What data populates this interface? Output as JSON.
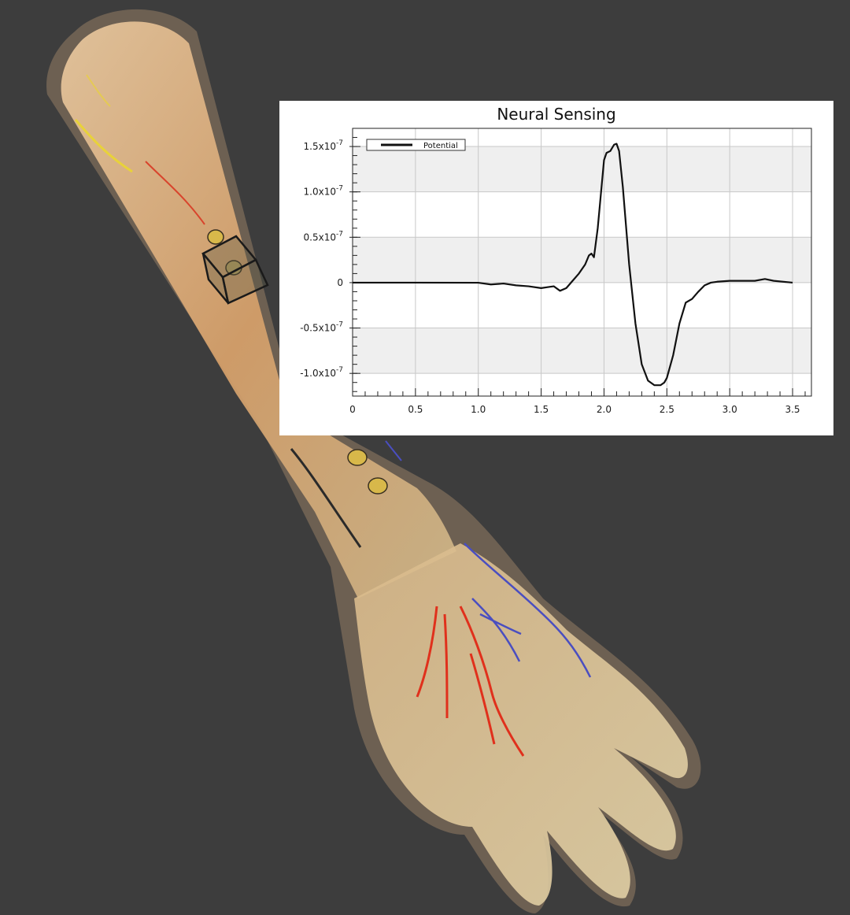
{
  "scene": {
    "background_color": "#3d3d3d",
    "skin_color": "#d9a873",
    "nerve_red": "#e0301c",
    "nerve_blue": "#4a4ec0",
    "nerve_yellow": "#e8d23a",
    "electrode_color": "#d8b84a"
  },
  "chart_data": {
    "type": "line",
    "title": "Neural Sensing",
    "xlabel": "",
    "ylabel": "",
    "xlim": [
      0,
      3.65
    ],
    "ylim": [
      -1.25e-07,
      1.7e-07
    ],
    "x_ticks": [
      {
        "value": 0,
        "label": "0"
      },
      {
        "value": 0.5,
        "label": "0.5"
      },
      {
        "value": 1.0,
        "label": "1.0"
      },
      {
        "value": 1.5,
        "label": "1.5"
      },
      {
        "value": 2.0,
        "label": "2.0"
      },
      {
        "value": 2.5,
        "label": "2.5"
      },
      {
        "value": 3.0,
        "label": "3.0"
      },
      {
        "value": 3.5,
        "label": "3.5"
      }
    ],
    "y_ticks": [
      {
        "value": 1.5e-07,
        "base": "1.5x10",
        "exp": "-7"
      },
      {
        "value": 1e-07,
        "base": "1.0x10",
        "exp": "-7"
      },
      {
        "value": 5e-08,
        "base": "0.5x10",
        "exp": "-7"
      },
      {
        "value": 0,
        "base": "0",
        "exp": ""
      },
      {
        "value": -5e-08,
        "base": "-0.5x10",
        "exp": "-7"
      },
      {
        "value": -1e-07,
        "base": "-1.0x10",
        "exp": "-7"
      }
    ],
    "grid": true,
    "banded_background": true,
    "legend_position": "top-left",
    "series": [
      {
        "name": "Potential",
        "color": "#111111",
        "x": [
          0,
          0.5,
          1.0,
          1.1,
          1.2,
          1.3,
          1.4,
          1.5,
          1.55,
          1.6,
          1.65,
          1.7,
          1.75,
          1.8,
          1.85,
          1.88,
          1.9,
          1.92,
          1.95,
          1.98,
          2.0,
          2.02,
          2.05,
          2.08,
          2.1,
          2.12,
          2.15,
          2.2,
          2.25,
          2.3,
          2.35,
          2.4,
          2.45,
          2.48,
          2.5,
          2.55,
          2.6,
          2.65,
          2.7,
          2.75,
          2.8,
          2.85,
          2.9,
          3.0,
          3.1,
          3.2,
          3.28,
          3.35,
          3.5
        ],
        "values": [
          0,
          0,
          -1e-10,
          -2e-09,
          -1e-09,
          -3e-09,
          -4e-09,
          -6e-09,
          -5e-09,
          -4e-09,
          -9e-09,
          -6e-09,
          2e-09,
          1e-08,
          2e-08,
          3e-08,
          3.2e-08,
          2.8e-08,
          6e-08,
          1.05e-07,
          1.35e-07,
          1.43e-07,
          1.45e-07,
          1.52e-07,
          1.53e-07,
          1.45e-07,
          1.05e-07,
          2e-08,
          -4.5e-08,
          -9e-08,
          -1.08e-07,
          -1.13e-07,
          -1.13e-07,
          -1.1e-07,
          -1.05e-07,
          -8e-08,
          -4.5e-08,
          -2.2e-08,
          -1.8e-08,
          -1e-08,
          -3e-09,
          0,
          1e-09,
          2e-09,
          2e-09,
          2e-09,
          4e-09,
          2e-09,
          0
        ]
      }
    ]
  }
}
